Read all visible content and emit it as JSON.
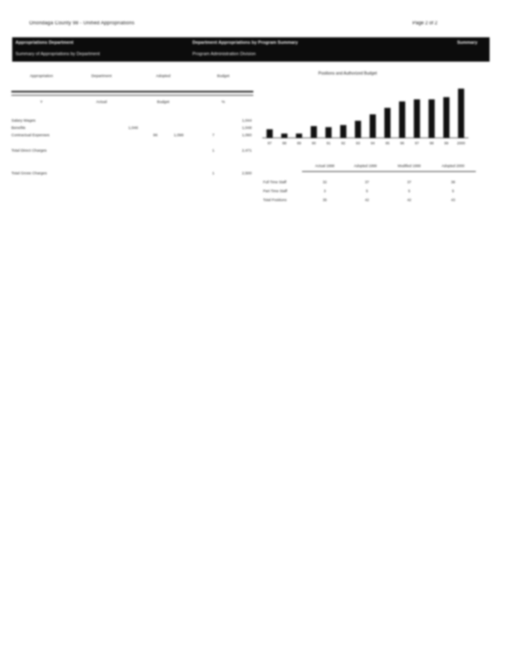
{
  "header": {
    "left": "Onondaga County 98 - Unified Appropriations",
    "right": "Page 2 of 2"
  },
  "banner": {
    "col1": "Appropriations  Department",
    "col2": "Department  Appropriations by Program  Summary",
    "col3": "Summary",
    "row2_left": "Summary of Appropriations  by Department",
    "row2_right": "Program  Administration  Division"
  },
  "columns": {
    "c1": "Appropriation",
    "c2": "Department",
    "c3": "Adopted",
    "c4": "Budget",
    "c1b": "Y",
    "c2b": "Actual",
    "c3b": "Budget",
    "c4b": "%"
  },
  "rows": [
    {
      "label": "Salary Wages",
      "a": "",
      "b": "",
      "c": "",
      "d": "",
      "e": "1,044"
    },
    {
      "label": "Benefits",
      "a": "1,046",
      "b": "",
      "c": "",
      "d": "",
      "e": "1,048"
    },
    {
      "label": "Contractual Expenses",
      "a": "",
      "b": "96",
      "c": "1,098",
      "d": "7",
      "e": "1,060"
    },
    {
      "label": "Total Direct Charges",
      "a": "",
      "b": "",
      "c": "",
      "d": "1",
      "e": "2,471"
    },
    {
      "label": "Total Gross Charges",
      "a": "",
      "b": "",
      "c": "",
      "d": "1",
      "e": "2,500"
    }
  ],
  "chart_data": {
    "type": "bar",
    "title": "Positions and Authorized Budget",
    "categories": [
      "87",
      "88",
      "89",
      "90",
      "91",
      "92",
      "93",
      "94",
      "95",
      "96",
      "97",
      "98",
      "99",
      "2000"
    ],
    "values": [
      8,
      4,
      4,
      11,
      10,
      12,
      16,
      22,
      28,
      34,
      36,
      36,
      38,
      46
    ],
    "ylim": [
      0,
      50
    ]
  },
  "summary_table": {
    "groups": [
      "Actual 1998",
      "Adopted 1999",
      "Modified 1999",
      "Adopted 2000"
    ],
    "rows": [
      {
        "label": "Full Time Staff",
        "values": [
          "32",
          "37",
          "37",
          "38"
        ]
      },
      {
        "label": "Part Time Staff",
        "values": [
          "3",
          "5",
          "5",
          "5"
        ]
      },
      {
        "label": "Total Positions",
        "values": [
          "35",
          "42",
          "42",
          "43"
        ]
      }
    ]
  }
}
